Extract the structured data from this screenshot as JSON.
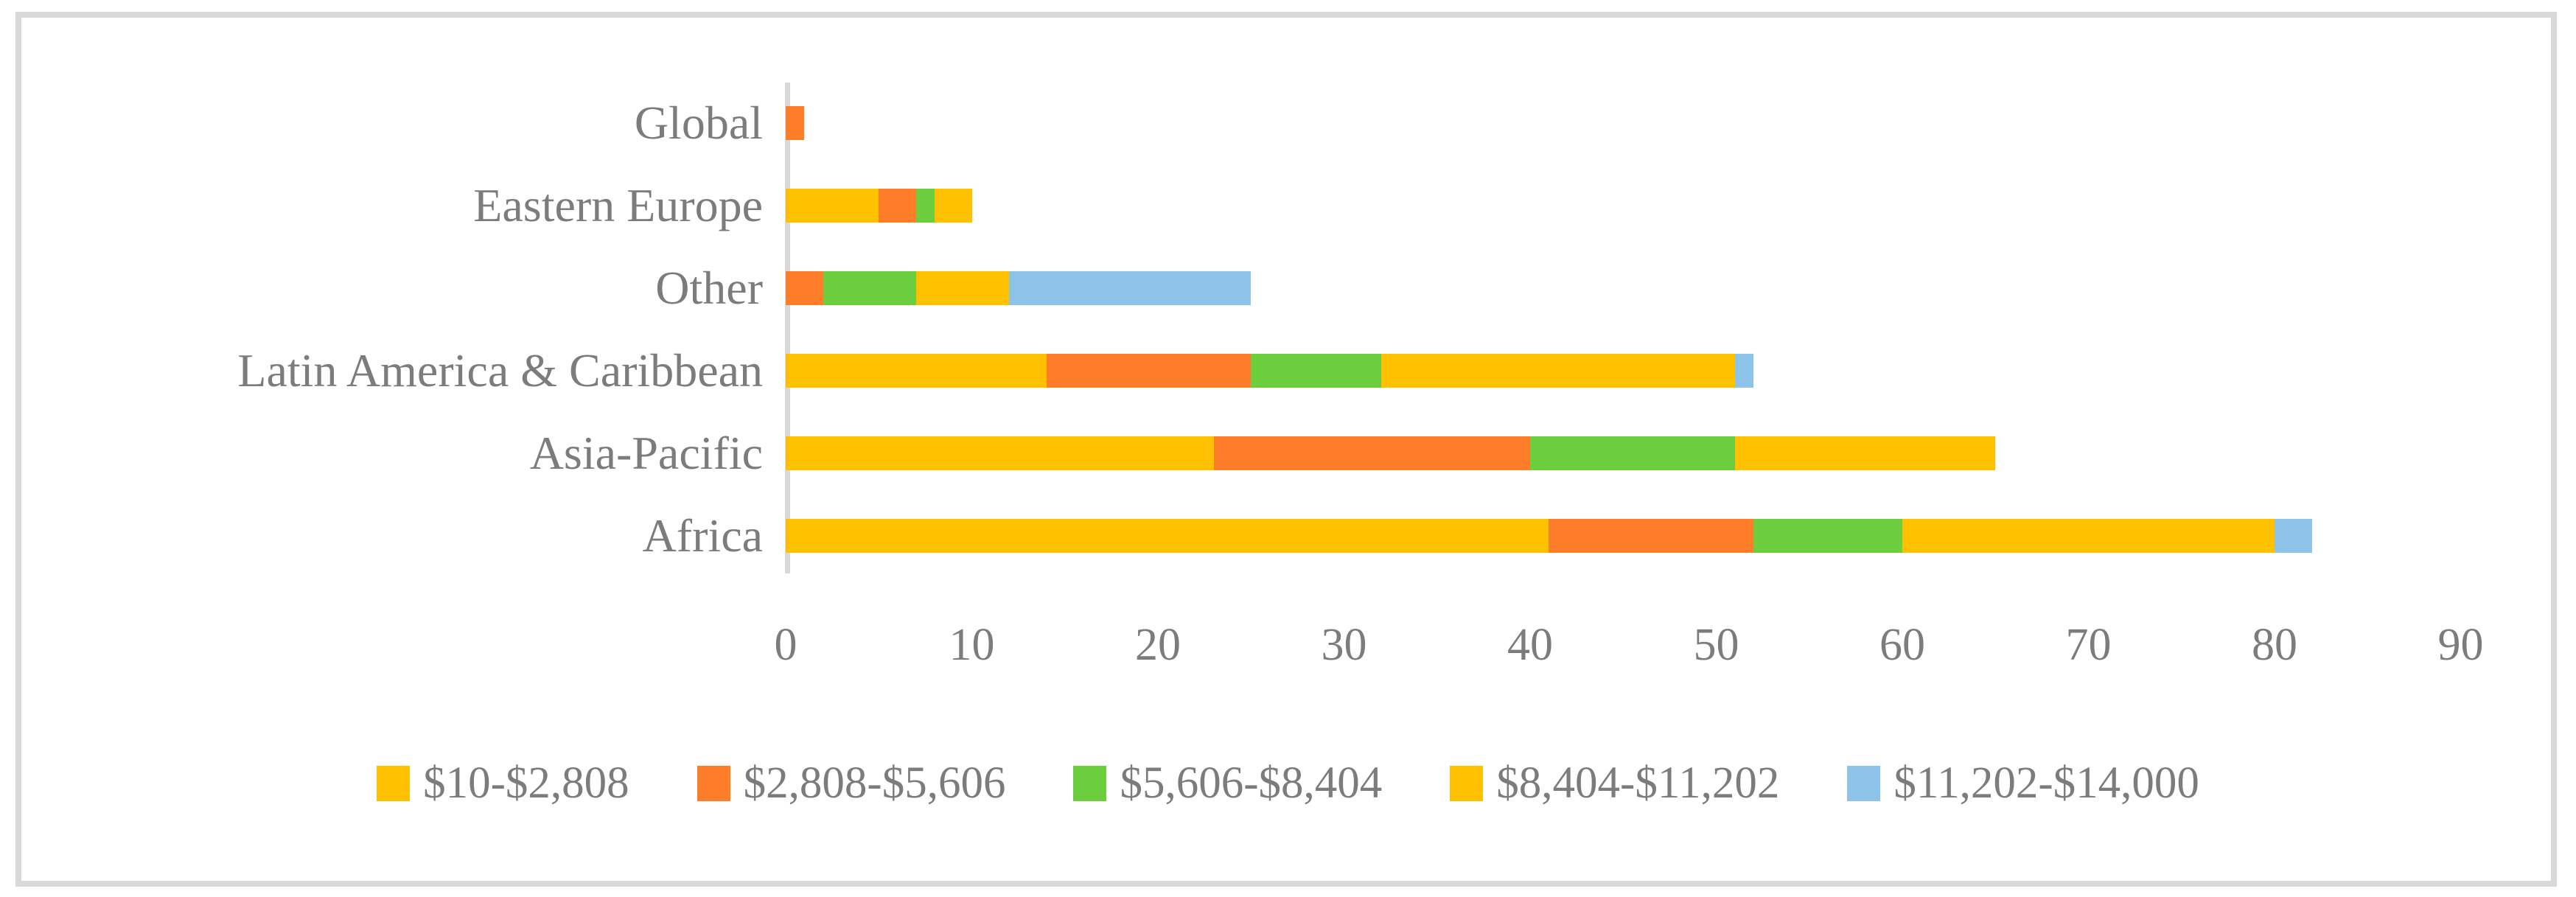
{
  "chart_data": {
    "type": "bar",
    "orientation": "horizontal",
    "stacked": true,
    "categories": [
      "Global",
      "Eastern Europe",
      "Other",
      "Latin America & Caribbean",
      "Asia-Pacific",
      "Africa"
    ],
    "series": [
      {
        "name": "$10-$2,808",
        "color": "#FFC000",
        "values": [
          0,
          5,
          0,
          14,
          23,
          41
        ]
      },
      {
        "name": "$2,808-$5,606",
        "color": "#FD7D28",
        "values": [
          1,
          2,
          2,
          11,
          17,
          11
        ]
      },
      {
        "name": "$5,606-$8,404",
        "color": "#6CCE3C",
        "values": [
          0,
          1,
          5,
          7,
          11,
          8
        ]
      },
      {
        "name": "$8,404-$11,202",
        "color": "#FFC000",
        "values": [
          0,
          2,
          5,
          19,
          14,
          20
        ]
      },
      {
        "name": "$11,202-$14,000",
        "color": "#8DC3E9",
        "values": [
          0,
          0,
          13,
          1,
          0,
          2
        ]
      }
    ],
    "totals": [
      1,
      10,
      25,
      52,
      65,
      82
    ],
    "xlabel": "",
    "ylabel": "",
    "title": "",
    "x_ticks": [
      0,
      10,
      20,
      30,
      40,
      50,
      60,
      70,
      80,
      90
    ],
    "xlim": [
      0,
      90
    ],
    "grid": false,
    "legend_position": "bottom",
    "axis_color": "#d9d9d9",
    "text_color": "#7c7c7c",
    "frame_color": "#d9d9d9"
  }
}
